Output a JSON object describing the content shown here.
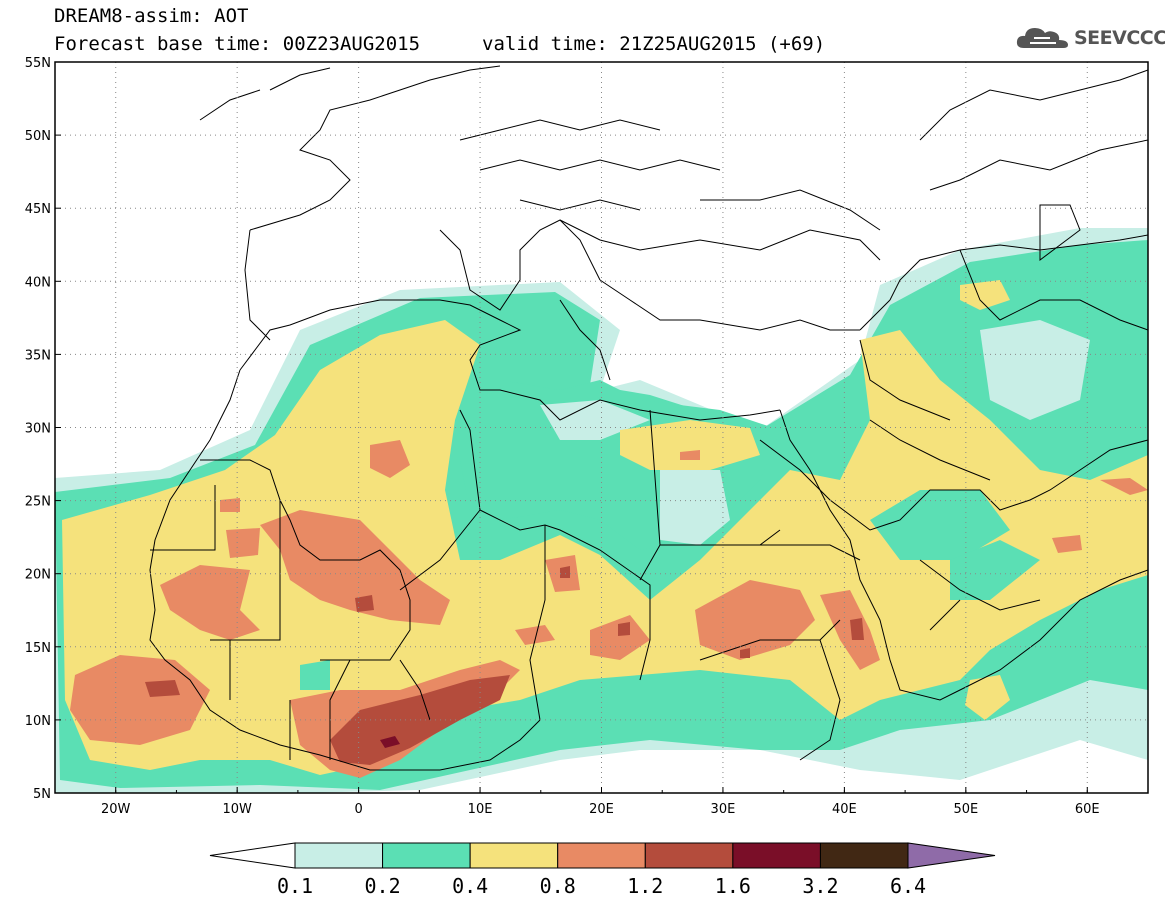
{
  "header": {
    "title": "DREAM8-assim: AOT",
    "forecast_base": "Forecast base time: 00Z23AUG2015",
    "valid_time": "valid time: 21Z25AUG2015 (+69)"
  },
  "logo": {
    "text": "SEEVCCC",
    "icon": "cloud-icon"
  },
  "map": {
    "lon_range": [
      -25,
      65
    ],
    "lat_range": [
      5,
      55
    ],
    "lat_ticks": [
      "5N",
      "10N",
      "15N",
      "20N",
      "25N",
      "30N",
      "35N",
      "40N",
      "45N",
      "50N",
      "55N"
    ],
    "lon_ticks": [
      "20W",
      "10W",
      "0",
      "10E",
      "20E",
      "30E",
      "40E",
      "50E",
      "60E"
    ],
    "gridlines": true
  },
  "colorbar": {
    "levels": [
      "0.1",
      "0.2",
      "0.4",
      "0.8",
      "1.2",
      "1.6",
      "3.2",
      "6.4"
    ],
    "colors": [
      "#ffffff",
      "#c8eee6",
      "#5bdfb4",
      "#f5e27c",
      "#e88a64",
      "#b44c3c",
      "#7a0e28",
      "#412814",
      "#8f6ba8"
    ]
  }
}
